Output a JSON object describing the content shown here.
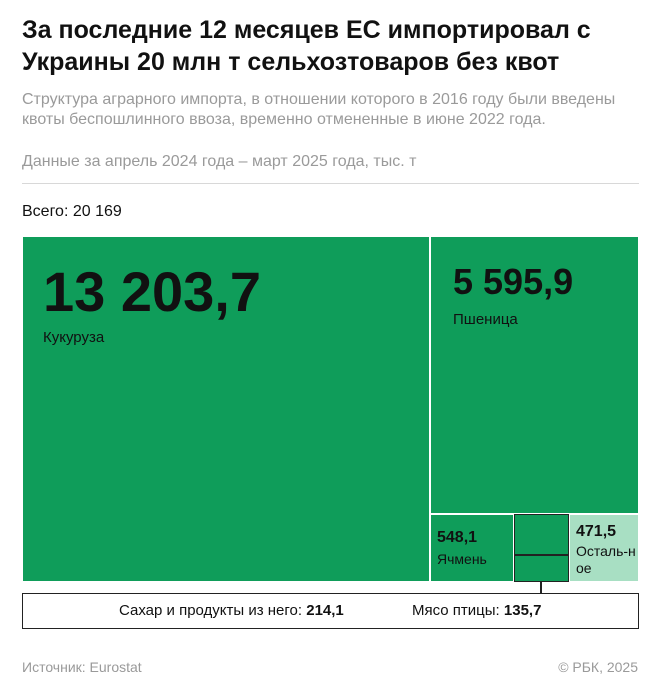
{
  "header": {
    "title": "За последние 12 месяцев ЕС импортировал с Украины 20 млн т сельхозтоваров без квот",
    "subtitle": "Структура аграрного импорта, в отношении которого в 2016 году были введены квоты беспошлинного ввоза, временно отмененные в июне 2022 года.",
    "note": "Данные за апрель 2024 года – март 2025 года, тыс. т"
  },
  "total_label": "Всего: 20 169",
  "chart_data": {
    "type": "treemap",
    "unit": "тыс. т",
    "total": 20169,
    "items": [
      {
        "name": "Кукуруза",
        "value": 13203.7,
        "value_label": "13 203,7",
        "color": "#0f9d5a"
      },
      {
        "name": "Пшеница",
        "value": 5595.9,
        "value_label": "5 595,9",
        "color": "#0f9d5a"
      },
      {
        "name": "Ячмень",
        "value": 548.1,
        "value_label": "548,1",
        "color": "#0f9d5a"
      },
      {
        "name": "Сахар и продукты из него",
        "value": 214.1,
        "value_label": "214,1",
        "color": "#0f9d5a"
      },
      {
        "name": "Мясо птицы",
        "value": 135.7,
        "value_label": "135,7",
        "color": "#0f9d5a"
      },
      {
        "name": "Осталь-ное",
        "value": 471.5,
        "value_label": "471,5",
        "color": "#a8dfc3"
      }
    ]
  },
  "legend": {
    "sugar_label": "Сахар и продукты из него:",
    "sugar_value": "214,1",
    "poultry_label": "Мясо птицы:",
    "poultry_value": "135,7"
  },
  "footer": {
    "source": "Источник: Eurostat",
    "copyright": "© РБК, 2025"
  }
}
